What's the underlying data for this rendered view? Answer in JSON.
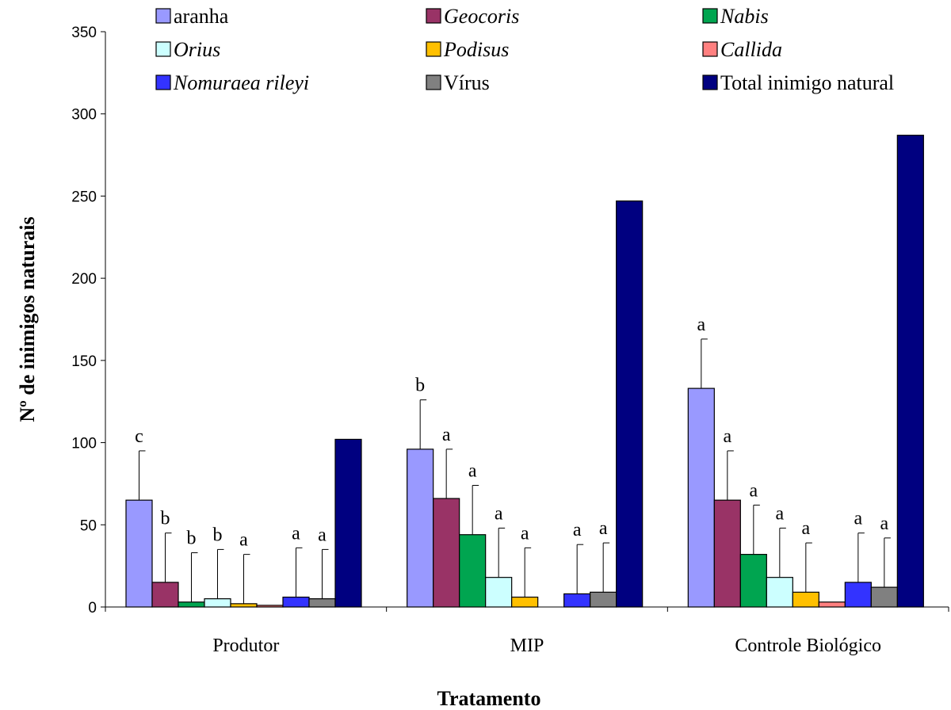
{
  "chart_data": {
    "type": "bar",
    "xlabel": "Tratamento",
    "ylabel": "Nº de inimigos naturais",
    "ylim": [
      0,
      350
    ],
    "yticks": [
      0,
      50,
      100,
      150,
      200,
      250,
      300,
      350
    ],
    "categories": [
      "Produtor",
      "MIP",
      "Controle Biológico"
    ],
    "legend_position": "top",
    "series": [
      {
        "name": "aranha",
        "italic": false,
        "color": "#9999ff",
        "values": [
          65,
          96,
          133
        ],
        "errors": [
          30,
          30,
          30
        ],
        "letters": [
          "c",
          "b",
          "a"
        ]
      },
      {
        "name": "Geocoris",
        "italic": true,
        "color": "#993366",
        "values": [
          15,
          66,
          65
        ],
        "errors": [
          30,
          30,
          30
        ],
        "letters": [
          "b",
          "a",
          "a"
        ]
      },
      {
        "name": "Nabis",
        "italic": true,
        "color": "#00a550",
        "values": [
          3,
          44,
          32
        ],
        "errors": [
          30,
          30,
          30
        ],
        "letters": [
          "b",
          "a",
          "a"
        ]
      },
      {
        "name": "Orius",
        "italic": true,
        "color": "#ccffff",
        "values": [
          5,
          18,
          18
        ],
        "errors": [
          30,
          30,
          30
        ],
        "letters": [
          "b",
          "a",
          "a"
        ]
      },
      {
        "name": "Podisus",
        "italic": true,
        "color": "#ffc000",
        "values": [
          2,
          6,
          9
        ],
        "errors": [
          30,
          30,
          30
        ],
        "letters": [
          "a",
          "a",
          "a"
        ]
      },
      {
        "name": "Callida",
        "italic": true,
        "color": "#ff8080",
        "values": [
          1,
          0,
          3
        ],
        "errors": [
          null,
          null,
          null
        ],
        "letters": [
          "",
          "",
          ""
        ]
      },
      {
        "name": "Nomuraea rileyi",
        "italic": true,
        "color": "#3333ff",
        "values": [
          6,
          8,
          15
        ],
        "errors": [
          30,
          30,
          30
        ],
        "letters": [
          "a",
          "a",
          "a"
        ]
      },
      {
        "name": "Vírus",
        "italic": false,
        "color": "#808080",
        "values": [
          5,
          9,
          12
        ],
        "errors": [
          30,
          30,
          30
        ],
        "letters": [
          "a",
          "a",
          "a"
        ]
      },
      {
        "name": "Total inimigo natural",
        "italic": false,
        "color": "#000080",
        "values": [
          102,
          247,
          287
        ],
        "errors": [
          null,
          null,
          null
        ],
        "letters": [
          "",
          "",
          ""
        ]
      }
    ]
  }
}
